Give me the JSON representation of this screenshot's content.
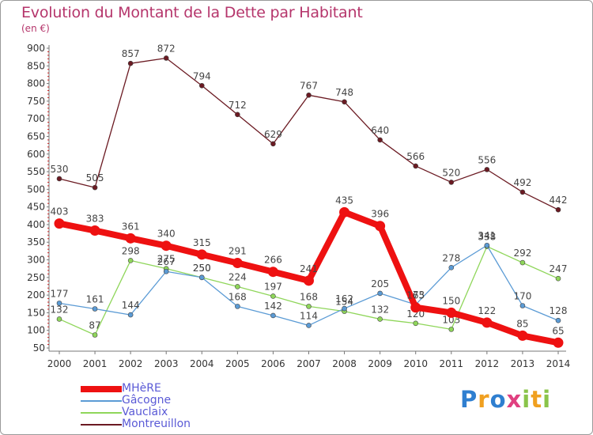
{
  "title": "Evolution du Montant de la Dette par Habitant",
  "unit_label": "(en €)",
  "logo": {
    "text": "Proxiti",
    "colors": [
      "#2f7fd0",
      "#f0a020",
      "#e04080",
      "#8ac44a"
    ]
  },
  "chart_data": {
    "type": "line",
    "x": [
      2000,
      2001,
      2002,
      2003,
      2004,
      2005,
      2006,
      2007,
      2008,
      2009,
      2010,
      2011,
      2012,
      2013,
      2014
    ],
    "ylim": [
      50,
      900
    ],
    "yticks": [
      50,
      100,
      150,
      200,
      250,
      300,
      350,
      400,
      450,
      500,
      550,
      600,
      650,
      700,
      750,
      800,
      850,
      900
    ],
    "grid": false,
    "legend_position": "bottom-left",
    "series": [
      {
        "name": "Montreuillon",
        "color": "#6b1a22",
        "values": [
          530,
          505,
          857,
          872,
          794,
          712,
          629,
          767,
          748,
          640,
          566,
          520,
          556,
          492,
          442
        ]
      },
      {
        "name": "Vauclaix",
        "color": "#8fd65a",
        "values": [
          132,
          87,
          298,
          275,
          250,
          224,
          197,
          168,
          154,
          132,
          120,
          103,
          338,
          292,
          247
        ]
      },
      {
        "name": "Gâcogne",
        "color": "#5b9bd5",
        "values": [
          177,
          161,
          144,
          267,
          250,
          168,
          142,
          114,
          162,
          205,
          173,
          278,
          341,
          170,
          128
        ]
      },
      {
        "name": "MHèRE",
        "color": "#ee1111",
        "values": [
          403,
          383,
          361,
          340,
          315,
          291,
          266,
          241,
          435,
          396,
          165,
          150,
          122,
          85,
          65
        ]
      }
    ]
  }
}
